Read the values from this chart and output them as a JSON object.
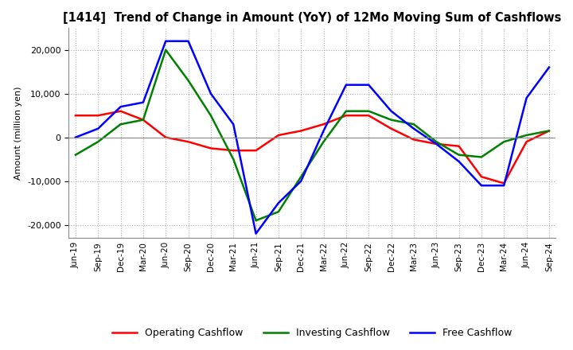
{
  "title": "[1414]  Trend of Change in Amount (YoY) of 12Mo Moving Sum of Cashflows",
  "ylabel": "Amount (million yen)",
  "ylim": [
    -23000,
    25000
  ],
  "yticks": [
    -20000,
    -10000,
    0,
    10000,
    20000
  ],
  "x_labels": [
    "Jun-19",
    "Sep-19",
    "Dec-19",
    "Mar-20",
    "Jun-20",
    "Sep-20",
    "Dec-20",
    "Mar-21",
    "Jun-21",
    "Sep-21",
    "Dec-21",
    "Mar-22",
    "Jun-22",
    "Sep-22",
    "Dec-22",
    "Mar-23",
    "Jun-23",
    "Sep-23",
    "Dec-23",
    "Mar-24",
    "Jun-24",
    "Sep-24"
  ],
  "operating": [
    5000,
    5000,
    6000,
    4000,
    0,
    -1000,
    -2500,
    -3000,
    -3000,
    500,
    1500,
    3000,
    5000,
    5000,
    2000,
    -500,
    -1500,
    -2000,
    -9000,
    -10500,
    -1000,
    1500
  ],
  "investing": [
    -4000,
    -1000,
    3000,
    4000,
    20000,
    13000,
    5000,
    -5000,
    -19000,
    -17000,
    -9000,
    -1000,
    6000,
    6000,
    4000,
    3000,
    -1000,
    -4000,
    -4500,
    -1000,
    500,
    1500
  ],
  "free": [
    0,
    2000,
    7000,
    8000,
    22000,
    22000,
    10000,
    3000,
    -22000,
    -15000,
    -10000,
    1500,
    12000,
    12000,
    6000,
    2000,
    -1500,
    -5500,
    -11000,
    -11000,
    9000,
    16000
  ],
  "operating_color": "#ff0000",
  "investing_color": "#008000",
  "free_color": "#0000ff",
  "background_color": "#ffffff",
  "grid_color": "#aaaaaa"
}
